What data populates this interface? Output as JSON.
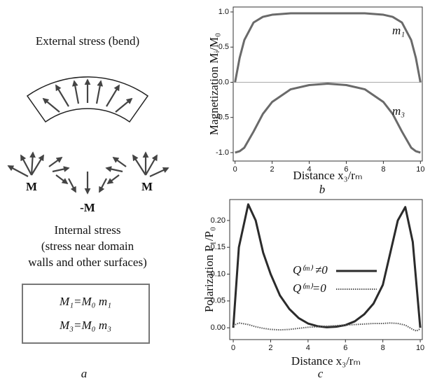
{
  "panel_a": {
    "title": "External stress (bend)",
    "domain_labels": [
      "M",
      "-M",
      "M"
    ],
    "caption_lines": [
      "Internal stress",
      "(stress near domain",
      "walls and other surfaces)"
    ],
    "equations": [
      "M₁=M₀ m₁",
      "M₃=M₀ m₃"
    ],
    "panel_label": "a"
  },
  "chart_data": [
    {
      "type": "line",
      "panel_label": "b",
      "x_label": "Distance x₃/rₘ",
      "y_label": "Magnetization Mᵢ/M₀",
      "xlim": [
        -0.1,
        10.1
      ],
      "ylim": [
        -1.12,
        1.07
      ],
      "xticks": [
        0,
        2,
        4,
        6,
        8,
        10
      ],
      "yticks": [
        {
          "value": -1,
          "label": "-1.0"
        },
        -0.5,
        {
          "value": 0,
          "label": "0.0"
        },
        0.5,
        {
          "value": 1,
          "label": "1.0"
        }
      ],
      "zero_line": true,
      "x": [
        0,
        0.25,
        0.5,
        1,
        1.5,
        2,
        3,
        4,
        5,
        6,
        7,
        8,
        8.5,
        9,
        9.5,
        9.75,
        10
      ],
      "series": [
        {
          "name": "m₁",
          "color": "#6a6a6a",
          "style": "solid",
          "values": [
            0,
            0.35,
            0.6,
            0.85,
            0.93,
            0.96,
            0.98,
            0.98,
            0.98,
            0.98,
            0.98,
            0.96,
            0.93,
            0.85,
            0.6,
            0.35,
            0
          ]
        },
        {
          "name": "m₃",
          "color": "#6a6a6a",
          "style": "solid",
          "values": [
            -1.0,
            -0.98,
            -0.93,
            -0.7,
            -0.45,
            -0.28,
            -0.1,
            -0.04,
            -0.02,
            -0.04,
            -0.1,
            -0.28,
            -0.45,
            -0.7,
            -0.93,
            -0.98,
            -1.0
          ]
        }
      ]
    },
    {
      "type": "line",
      "panel_label": "c",
      "x_label": "Distance x₃/rₘ",
      "y_label": "Polarization P₁/P₀",
      "xlim": [
        -0.19,
        10.11
      ],
      "ylim": [
        -0.022,
        0.239
      ],
      "xticks": [
        0,
        2,
        4,
        6,
        8,
        10
      ],
      "yticks": [
        {
          "value": 0,
          "label": "0.00"
        },
        0.05,
        {
          "value": 0.1,
          "label": "0.10"
        },
        0.15,
        {
          "value": 0.2,
          "label": "0.20"
        }
      ],
      "zero_line": false,
      "x": [
        0,
        0.3,
        0.8,
        1.2,
        1.6,
        2,
        2.5,
        3,
        3.5,
        4,
        4.5,
        5,
        5.5,
        6,
        6.5,
        7,
        7.5,
        8,
        8.4,
        8.8,
        9.2,
        9.6,
        9.8,
        10
      ],
      "series": [
        {
          "name": "Q⁽ᵐ⁾ ≠0",
          "color": "#2b2b2b",
          "style": "solid",
          "values": [
            0.0,
            0.15,
            0.23,
            0.2,
            0.14,
            0.1,
            0.06,
            0.035,
            0.018,
            0.008,
            0.003,
            0.001,
            0.002,
            0.005,
            0.012,
            0.025,
            0.045,
            0.08,
            0.14,
            0.2,
            0.225,
            0.16,
            0.08,
            0.0
          ]
        },
        {
          "name": "Q⁽ᵐ⁾=0",
          "color": "#555555",
          "style": "dotted",
          "values": [
            0.004,
            0.009,
            0.006,
            0.002,
            -0.001,
            -0.003,
            -0.004,
            -0.003,
            -0.001,
            0.001,
            0.002,
            0.003,
            0.004,
            0.005,
            0.006,
            0.007,
            0.008,
            0.008,
            0.009,
            0.008,
            0.005,
            -0.003,
            -0.006,
            -0.002
          ]
        }
      ]
    }
  ]
}
